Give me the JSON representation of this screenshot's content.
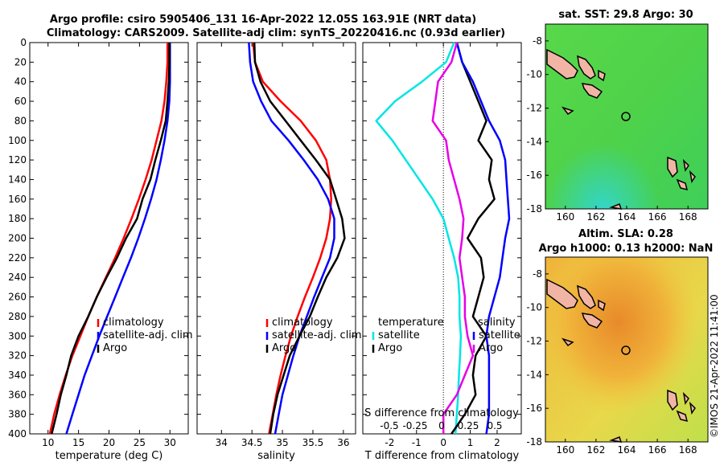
{
  "header": {
    "line1": "Argo profile: csiro 5905406_131 16-Apr-2022 12.05S 163.91E (NRT data)",
    "line2": "Climatology: CARS2009. Satellite-adj clim: synTS_20220416.nc (0.93d earlier)"
  },
  "colors": {
    "climatology": "#ff0000",
    "satellite": "#0000ff",
    "argo": "#000000",
    "temperature_diff": "#00e5e5",
    "salinity_diff": "#e600e6"
  },
  "side": "©IMOS 21-Apr-2022 11:41:00",
  "chart_data": [
    {
      "type": "line",
      "id": "temperature",
      "xlabel": "temperature (deg C)",
      "ylabel": "",
      "xlim": [
        7,
        33
      ],
      "ylim": [
        400,
        0
      ],
      "xticks": [
        "10",
        "15",
        "20",
        "25",
        "30"
      ],
      "yticks": [
        "0",
        "20",
        "40",
        "60",
        "80",
        "100",
        "120",
        "140",
        "160",
        "180",
        "200",
        "220",
        "240",
        "260",
        "280",
        "300",
        "320",
        "340",
        "360",
        "380",
        "400"
      ],
      "legend": [
        "climatology",
        "satellite-adj. clim",
        "Argo"
      ],
      "series": [
        {
          "name": "climatology",
          "color": "#ff0000",
          "x": [
            29.6,
            29.6,
            29.4,
            29.1,
            28.6,
            27.8,
            27.0,
            26.0,
            24.9,
            23.7,
            22.4,
            21.0,
            19.5,
            18.0,
            16.6,
            15.3,
            14.0,
            12.9,
            11.9,
            11.0,
            10.3
          ],
          "y": [
            0,
            20,
            40,
            60,
            80,
            100,
            120,
            140,
            160,
            180,
            200,
            220,
            240,
            260,
            280,
            300,
            320,
            340,
            360,
            380,
            400
          ]
        },
        {
          "name": "satellite-adj. clim",
          "color": "#0000ff",
          "x": [
            30.0,
            30.0,
            30.0,
            29.9,
            29.6,
            29.1,
            28.5,
            27.8,
            26.9,
            25.9,
            24.8,
            23.6,
            22.3,
            21.0,
            19.7,
            18.4,
            17.2,
            16.0,
            15.0,
            14.0,
            13.0
          ],
          "y": [
            0,
            20,
            40,
            60,
            80,
            100,
            120,
            140,
            160,
            180,
            200,
            220,
            240,
            260,
            280,
            300,
            320,
            340,
            360,
            380,
            400
          ]
        },
        {
          "name": "Argo",
          "color": "#000000",
          "x": [
            29.9,
            29.9,
            29.8,
            29.6,
            29.3,
            28.5,
            27.6,
            26.8,
            25.5,
            24.6,
            22.8,
            21.3,
            19.6,
            18.0,
            16.6,
            15.0,
            13.8,
            13.0,
            12.1,
            11.4,
            10.6
          ],
          "y": [
            0,
            20,
            40,
            60,
            80,
            100,
            120,
            140,
            160,
            180,
            200,
            220,
            240,
            260,
            280,
            300,
            320,
            340,
            360,
            380,
            400
          ]
        }
      ]
    },
    {
      "type": "line",
      "id": "salinity",
      "xlabel": "salinity",
      "ylabel": "",
      "xlim": [
        33.6,
        36.2
      ],
      "ylim": [
        400,
        0
      ],
      "xticks": [
        "34",
        "34.5",
        "35",
        "35.5",
        "36"
      ],
      "legend": [
        "climatology",
        "satellite-adj. clim",
        "Argo"
      ],
      "series": [
        {
          "name": "climatology",
          "color": "#ff0000",
          "x": [
            34.52,
            34.55,
            34.68,
            34.97,
            35.3,
            35.55,
            35.72,
            35.78,
            35.8,
            35.78,
            35.72,
            35.62,
            35.5,
            35.37,
            35.25,
            35.14,
            35.05,
            34.97,
            34.9,
            34.84,
            34.78
          ],
          "y": [
            0,
            20,
            40,
            60,
            80,
            100,
            120,
            140,
            160,
            180,
            200,
            220,
            240,
            260,
            280,
            300,
            320,
            340,
            360,
            380,
            400
          ]
        },
        {
          "name": "satellite-adj. clim",
          "color": "#0000ff",
          "x": [
            34.45,
            34.47,
            34.52,
            34.65,
            34.82,
            35.1,
            35.35,
            35.58,
            35.75,
            35.85,
            35.85,
            35.78,
            35.65,
            35.52,
            35.4,
            35.28,
            35.18,
            35.09,
            35.0,
            34.94,
            34.88
          ],
          "y": [
            0,
            20,
            40,
            60,
            80,
            100,
            120,
            140,
            160,
            180,
            200,
            220,
            240,
            260,
            280,
            300,
            320,
            340,
            360,
            380,
            400
          ]
        },
        {
          "name": "Argo",
          "color": "#000000",
          "x": [
            34.54,
            34.55,
            34.64,
            34.8,
            35.05,
            35.3,
            35.55,
            35.78,
            35.88,
            35.98,
            36.02,
            35.9,
            35.72,
            35.58,
            35.45,
            35.28,
            35.12,
            35.02,
            34.92,
            34.85,
            34.8
          ],
          "y": [
            0,
            20,
            40,
            60,
            80,
            100,
            120,
            140,
            160,
            180,
            200,
            220,
            240,
            260,
            280,
            300,
            320,
            340,
            360,
            380,
            400
          ]
        }
      ]
    },
    {
      "type": "line",
      "id": "difference",
      "xlabel": "T difference from climatology",
      "toplabel": "S difference from climatology",
      "xlim": [
        -3.0,
        2.9
      ],
      "ylim": [
        400,
        0
      ],
      "xticks": [
        "-2",
        "-1",
        "0",
        "1",
        "2"
      ],
      "toplabels": [
        "-0.5",
        "-0.25",
        "0",
        "0.25",
        "0.5"
      ],
      "legend_left": [
        "temperature",
        "satellite",
        "Argo"
      ],
      "legend_right": [
        "salinity",
        "satellite",
        "Argo"
      ],
      "series": [
        {
          "name": "temperature satellite",
          "color": "#00e5e5",
          "x": [
            0.4,
            0.1,
            -0.8,
            -1.8,
            -2.5,
            -1.9,
            -1.4,
            -0.9,
            -0.4,
            0.0,
            0.2,
            0.4,
            0.55,
            0.6,
            0.6,
            0.65,
            0.62,
            0.58,
            0.55,
            0.5,
            0.45
          ],
          "y": [
            0,
            20,
            40,
            60,
            80,
            100,
            120,
            140,
            160,
            180,
            200,
            220,
            240,
            260,
            280,
            300,
            320,
            340,
            360,
            380,
            400
          ]
        },
        {
          "name": "temperature Argo",
          "color": "#000000",
          "x": [
            0.5,
            0.7,
            1.0,
            1.3,
            1.6,
            1.3,
            1.8,
            1.7,
            1.9,
            1.3,
            0.9,
            1.4,
            1.5,
            1.3,
            1.1,
            1.6,
            1.2,
            1.1,
            1.2,
            0.8,
            0.3
          ],
          "y": [
            0,
            20,
            40,
            60,
            80,
            100,
            120,
            140,
            160,
            180,
            200,
            220,
            240,
            260,
            280,
            300,
            320,
            340,
            360,
            380,
            400
          ]
        },
        {
          "name": "salinity satellite",
          "color": "#0000ff",
          "x": [
            0.5,
            0.7,
            1.1,
            1.4,
            1.7,
            2.1,
            2.3,
            2.35,
            2.4,
            2.45,
            2.3,
            2.2,
            2.1,
            1.9,
            1.7,
            1.6,
            1.7,
            1.7,
            1.7,
            1.7,
            1.6
          ],
          "y": [
            0,
            20,
            40,
            60,
            80,
            100,
            120,
            140,
            160,
            180,
            200,
            220,
            240,
            260,
            280,
            300,
            320,
            340,
            360,
            380,
            400
          ]
        },
        {
          "name": "salinity Argo",
          "color": "#e600e6",
          "x": [
            0.5,
            0.3,
            -0.2,
            -0.3,
            -0.4,
            0.1,
            0.2,
            0.4,
            0.6,
            0.75,
            0.7,
            0.6,
            0.7,
            0.8,
            0.8,
            0.9,
            1.1,
            0.8,
            0.5,
            0.0,
            0.0
          ],
          "y": [
            0,
            20,
            40,
            60,
            80,
            100,
            120,
            140,
            160,
            180,
            200,
            220,
            240,
            260,
            280,
            300,
            320,
            340,
            360,
            380,
            400
          ]
        }
      ]
    },
    {
      "type": "heatmap",
      "id": "sst-map",
      "title": "sat. SST: 29.8 Argo: 30",
      "xticks": [
        "160",
        "162",
        "164",
        "166",
        "168"
      ],
      "yticks": [
        "-8",
        "-10",
        "-12",
        "-14",
        "-16",
        "-18"
      ],
      "xlim": [
        158.7,
        169.3
      ],
      "ylim": [
        -18,
        -7
      ]
    },
    {
      "type": "heatmap",
      "id": "sla-map",
      "title1": "Altim. SLA: 0.28",
      "title2": "Argo h1000: 0.13 h2000: NaN",
      "xticks": [
        "160",
        "162",
        "164",
        "166",
        "168"
      ],
      "yticks": [
        "-8",
        "-10",
        "-12",
        "-14",
        "-16",
        "-18"
      ],
      "xlim": [
        158.7,
        169.3
      ],
      "ylim": [
        -18,
        -7
      ]
    }
  ]
}
